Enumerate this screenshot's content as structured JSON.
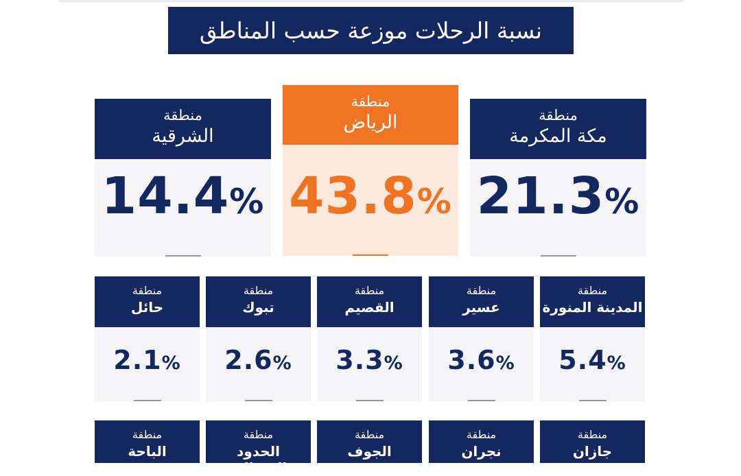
{
  "title": "نسبة الرحلات موزعة حسب المناطق",
  "colors": {
    "navy": "#14275e",
    "orange": "#f07423",
    "card_bg": "#f5f5f7",
    "highlight_bg": "#fbe9dd"
  },
  "regions": [
    {
      "prefix": "منطقة",
      "name": "الشرقية",
      "value": "14.4",
      "unit": "%"
    },
    {
      "prefix": "منطقة",
      "name": "الرياض",
      "value": "43.8",
      "unit": "%"
    },
    {
      "prefix": "منطقة",
      "name": "مكة المكرمة",
      "value": "21.3",
      "unit": "%"
    },
    {
      "prefix": "منطقة",
      "name": "حائل",
      "value": "2.1",
      "unit": "%"
    },
    {
      "prefix": "منطقة",
      "name": "تبوك",
      "value": "2.6",
      "unit": "%"
    },
    {
      "prefix": "منطقة",
      "name": "القصيم",
      "value": "3.3",
      "unit": "%"
    },
    {
      "prefix": "منطقة",
      "name": "عسير",
      "value": "3.6",
      "unit": "%"
    },
    {
      "prefix": "منطقة",
      "name": "المدينة المنورة",
      "value": "5.4",
      "unit": "%"
    },
    {
      "prefix": "منطقة",
      "name": "الباحة"
    },
    {
      "prefix": "منطقة",
      "name": "الحدود الشمالية"
    },
    {
      "prefix": "منطقة",
      "name": "الجوف"
    },
    {
      "prefix": "منطقة",
      "name": "نجران"
    },
    {
      "prefix": "منطقة",
      "name": "جازان"
    }
  ],
  "chart_data": {
    "type": "table",
    "title": "نسبة الرحلات موزعة حسب المناطق",
    "unit": "%",
    "categories": [
      "منطقة الشرقية",
      "منطقة الرياض",
      "منطقة مكة المكرمة",
      "منطقة حائل",
      "منطقة تبوك",
      "منطقة القصيم",
      "منطقة عسير",
      "منطقة المدينة المنورة"
    ],
    "values": [
      14.4,
      43.8,
      21.3,
      2.1,
      2.6,
      3.3,
      3.6,
      5.4
    ],
    "highlighted": "منطقة الرياض"
  }
}
